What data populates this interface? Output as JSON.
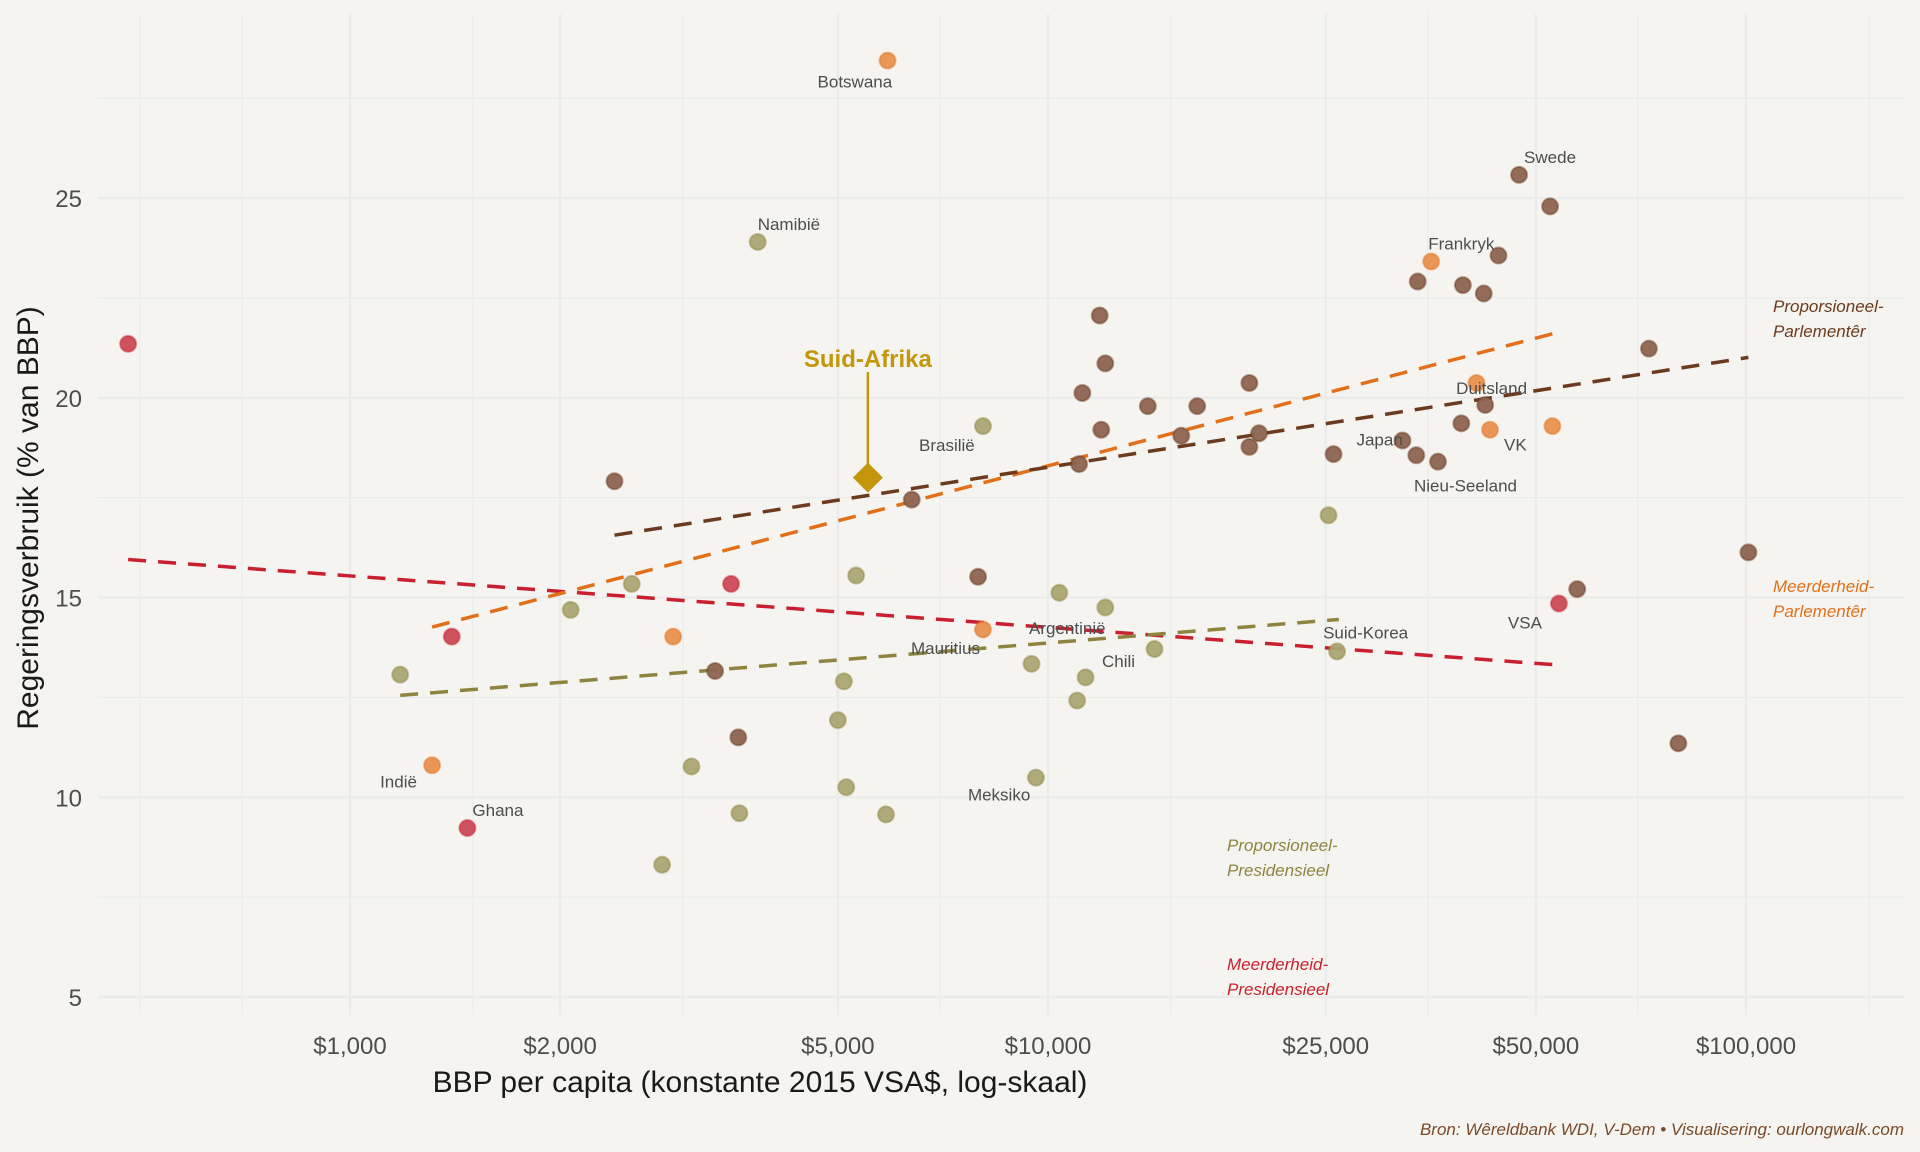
{
  "chart_data": {
    "type": "scatter",
    "title": "",
    "xlabel": "BBP per capita (konstante 2015 VSA$, log-skaal)",
    "ylabel": "Regeringsverbruik (% van BBP)",
    "xscale": "log",
    "xlim": [
      420,
      170000
    ],
    "ylim": [
      4.3,
      29.8
    ],
    "xticks": [
      {
        "value": 1000,
        "label": "$1,000"
      },
      {
        "value": 2000,
        "label": "$2,000"
      },
      {
        "value": 5000,
        "label": "$5,000"
      },
      {
        "value": 10000,
        "label": "$10,000"
      },
      {
        "value": 25000,
        "label": "$25,000"
      },
      {
        "value": 50000,
        "label": "$50,000"
      },
      {
        "value": 100000,
        "label": "$100,000"
      }
    ],
    "yticks": [
      {
        "value": 5,
        "label": "5"
      },
      {
        "value": 10,
        "label": "10"
      },
      {
        "value": 15,
        "label": "15"
      },
      {
        "value": 20,
        "label": "20"
      },
      {
        "value": 25,
        "label": "25"
      }
    ],
    "grid": true,
    "legend": "none (direct group labels at right/bottom)",
    "series": [
      {
        "name": "Meerderheid-Presidensieel",
        "label_lines": [
          "Meerderheid-",
          "Presidensieel"
        ],
        "color": "#c8202e",
        "points": [
          {
            "x": 481,
            "y": 21.35
          },
          {
            "x": 1399,
            "y": 14.02
          },
          {
            "x": 1473,
            "y": 9.23,
            "label": "Ghana"
          },
          {
            "x": 3515,
            "y": 15.34
          },
          {
            "x": 53950,
            "y": 14.85,
            "label": "VSA"
          }
        ],
        "trend": {
          "x": [
            481,
            53950
          ],
          "y": [
            15.95,
            13.31
          ]
        }
      },
      {
        "name": "Meerderheid-Parlementêr",
        "label_lines": [
          "Meerderheid-",
          "Parlementêr"
        ],
        "color": "#e2701a",
        "points": [
          {
            "x": 5890,
            "y": 28.44,
            "label": "Botswana"
          },
          {
            "x": 1311,
            "y": 10.8,
            "label": "Indië"
          },
          {
            "x": 2904,
            "y": 14.02
          },
          {
            "x": 8070,
            "y": 14.2
          },
          {
            "x": 35400,
            "y": 23.41,
            "label": "Frankryk"
          },
          {
            "x": 41100,
            "y": 20.37
          },
          {
            "x": 42980,
            "y": 19.2,
            "label": "VK"
          },
          {
            "x": 52800,
            "y": 19.29
          }
        ],
        "trend": {
          "x": [
            1311,
            52800
          ],
          "y": [
            14.26,
            21.6
          ]
        }
      },
      {
        "name": "Proporsioneel-Presidensieel",
        "label_lines": [
          "Proporsioneel-",
          "Presidensieel"
        ],
        "color": "#8e8440",
        "points": [
          {
            "x": 1180,
            "y": 13.07
          },
          {
            "x": 3838,
            "y": 23.9,
            "label": "Namibië"
          },
          {
            "x": 2071,
            "y": 14.69
          },
          {
            "x": 2533,
            "y": 15.34
          },
          {
            "x": 2800,
            "y": 8.31
          },
          {
            "x": 3085,
            "y": 10.77
          },
          {
            "x": 3613,
            "y": 9.6
          },
          {
            "x": 5310,
            "y": 15.55
          },
          {
            "x": 5100,
            "y": 12.9
          },
          {
            "x": 5000,
            "y": 11.93
          },
          {
            "x": 5140,
            "y": 10.25
          },
          {
            "x": 5860,
            "y": 9.57
          },
          {
            "x": 8070,
            "y": 19.29,
            "label": "Brasilië"
          },
          {
            "x": 10380,
            "y": 15.12
          },
          {
            "x": 9470,
            "y": 13.34
          },
          {
            "x": 11320,
            "y": 13.0
          },
          {
            "x": 11010,
            "y": 12.42
          },
          {
            "x": 9610,
            "y": 10.49,
            "label": "Meksiko"
          },
          {
            "x": 12080,
            "y": 14.75
          },
          {
            "x": 14210,
            "y": 13.71
          },
          {
            "x": 25230,
            "y": 17.06
          },
          {
            "x": 25950,
            "y": 13.65,
            "label": "Suid-Korea"
          }
        ],
        "trend": {
          "x": [
            1180,
            26100
          ],
          "y": [
            12.55,
            14.45
          ]
        }
      },
      {
        "name": "Proporsioneel-Parlementêr",
        "label_lines": [
          "Proporsioneel-",
          "Parlementêr"
        ],
        "color": "#6b3a1f",
        "points": [
          {
            "x": 2393,
            "y": 17.91
          },
          {
            "x": 3335,
            "y": 13.16
          },
          {
            "x": 3600,
            "y": 11.5
          },
          {
            "x": 6380,
            "y": 17.45
          },
          {
            "x": 7940,
            "y": 15.52
          },
          {
            "x": 11080,
            "y": 18.34
          },
          {
            "x": 11200,
            "y": 20.12
          },
          {
            "x": 11920,
            "y": 19.2
          },
          {
            "x": 11860,
            "y": 22.06
          },
          {
            "x": 12080,
            "y": 20.86
          },
          {
            "x": 13900,
            "y": 19.79
          },
          {
            "x": 15520,
            "y": 19.05
          },
          {
            "x": 16360,
            "y": 19.79
          },
          {
            "x": 19430,
            "y": 20.37
          },
          {
            "x": 19430,
            "y": 18.77
          },
          {
            "x": 20060,
            "y": 19.11
          },
          {
            "x": 25650,
            "y": 18.59
          },
          {
            "x": 32200,
            "y": 18.93,
            "label": "Japan"
          },
          {
            "x": 33700,
            "y": 18.56
          },
          {
            "x": 36200,
            "y": 18.4,
            "label": "Nieu-Seeland"
          },
          {
            "x": 33860,
            "y": 22.91
          },
          {
            "x": 39300,
            "y": 22.82
          },
          {
            "x": 42100,
            "y": 22.61
          },
          {
            "x": 39100,
            "y": 19.36
          },
          {
            "x": 42300,
            "y": 19.82,
            "label": "Duitsland"
          },
          {
            "x": 44200,
            "y": 23.56
          },
          {
            "x": 47300,
            "y": 25.58,
            "label": "Swede"
          },
          {
            "x": 52400,
            "y": 24.79
          },
          {
            "x": 57300,
            "y": 15.21
          },
          {
            "x": 72600,
            "y": 21.23
          },
          {
            "x": 80000,
            "y": 11.35
          },
          {
            "x": 100800,
            "y": 16.13
          }
        ],
        "trend": {
          "x": [
            2393,
            100800
          ],
          "y": [
            16.56,
            21.01
          ]
        }
      }
    ],
    "highlight": {
      "name": "Suid-Afrika",
      "x": 5520,
      "y": 18.0,
      "color": "#c4960c",
      "marker": "diamond"
    },
    "annotations": [
      "Mauritius",
      "Argentinië",
      "Chili"
    ],
    "source": "Bron: Wêreldbank WDI, V-Dem • Visualisering: ourlongwalk.com"
  }
}
